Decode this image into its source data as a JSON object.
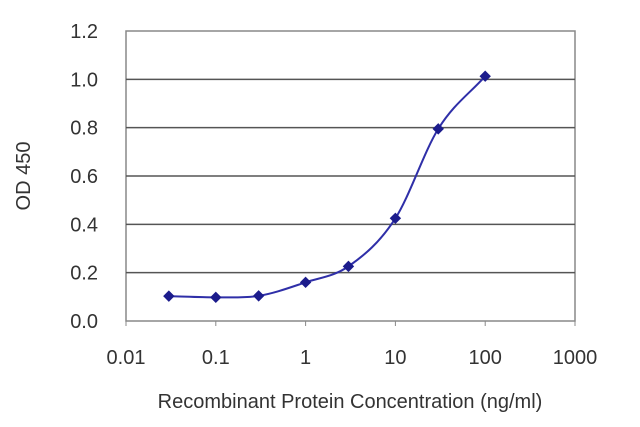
{
  "chart_data": {
    "type": "scatter",
    "xlabel": "Recombinant Protein Concentration (ng/ml)",
    "ylabel": "OD 450",
    "x_scale": "log",
    "xlim": [
      0.01,
      1000
    ],
    "ylim": [
      0.0,
      1.2
    ],
    "x_ticks": [
      "0.01",
      "0.1",
      "1",
      "10",
      "100",
      "1000"
    ],
    "y_ticks": [
      "0.0",
      "0.2",
      "0.4",
      "0.6",
      "0.8",
      "1.0",
      "1.2"
    ],
    "grid": "horizontal",
    "legend": "none",
    "series": [
      {
        "points": [
          {
            "x": 0.03,
            "y": 0.103
          },
          {
            "x": 0.1,
            "y": 0.098
          },
          {
            "x": 0.3,
            "y": 0.104
          },
          {
            "x": 1,
            "y": 0.16
          },
          {
            "x": 3,
            "y": 0.226
          },
          {
            "x": 10,
            "y": 0.425
          },
          {
            "x": 30,
            "y": 0.795
          },
          {
            "x": 100,
            "y": 1.013
          }
        ],
        "color": "#1c1c8c",
        "fit_curve": true
      }
    ]
  }
}
